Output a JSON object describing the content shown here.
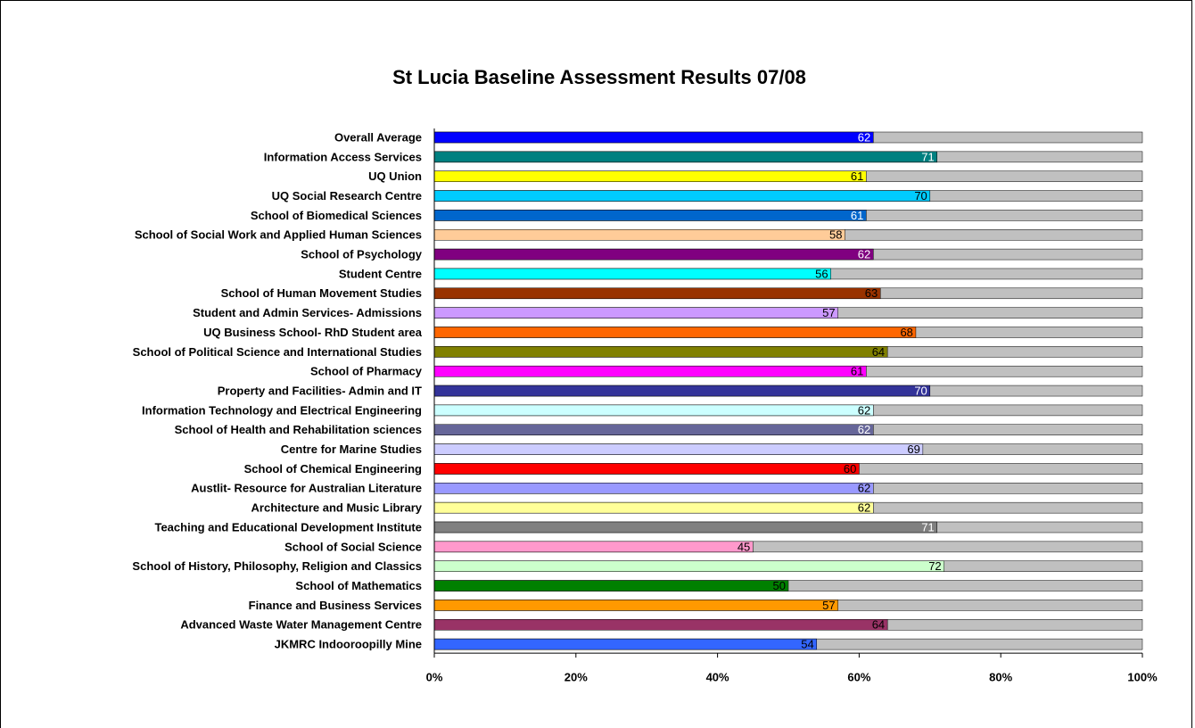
{
  "chart_data": {
    "type": "hbar",
    "title": "St Lucia Baseline Assessment Results 07/08",
    "categories": [
      "Overall Average",
      "Information Access Services",
      "UQ Union",
      "UQ Social Research Centre",
      "School of Biomedical Sciences",
      "School of Social Work and Applied Human Sciences",
      "School of Psychology",
      "Student Centre",
      "School of Human Movement Studies",
      "Student and Admin Services- Admissions",
      "UQ Business School- RhD Student area",
      "School of Political Science and International Studies",
      "School of Pharmacy",
      "Property and Facilities- Admin and IT",
      "Information Technology and Electrical Engineering",
      "School of Health and Rehabilitation sciences",
      "Centre for Marine Studies",
      "School of Chemical Engineering",
      "Austlit- Resource for Australian Literature",
      "Architecture and Music Library",
      "Teaching and Educational Development Institute",
      "School of Social Science",
      "School of History, Philosophy, Religion and Classics",
      "School of Mathematics",
      "Finance and Business Services",
      "Advanced Waste Water Management Centre",
      "JKMRC Indooroopilly Mine"
    ],
    "values": [
      62,
      71,
      61,
      70,
      61,
      58,
      62,
      56,
      63,
      57,
      68,
      64,
      61,
      70,
      62,
      62,
      69,
      60,
      62,
      62,
      71,
      45,
      72,
      50,
      57,
      64,
      54
    ],
    "colors": [
      "#0000ff",
      "#008080",
      "#ffff00",
      "#00ccff",
      "#0066cc",
      "#ffcc99",
      "#800080",
      "#00ffff",
      "#993300",
      "#cc99ff",
      "#ff6600",
      "#808000",
      "#ff00ff",
      "#333399",
      "#ccffff",
      "#666699",
      "#ccccff",
      "#ff0000",
      "#9999ff",
      "#ffff99",
      "#808080",
      "#ff99cc",
      "#ccffcc",
      "#008000",
      "#ff9900",
      "#993366",
      "#3366ff"
    ],
    "label_colors": [
      "#ffffff",
      "#ffffff",
      "#000000",
      "#000000",
      "#ffffff",
      "#000000",
      "#ffffff",
      "#000000",
      "#000000",
      "#000000",
      "#000000",
      "#000000",
      "#000000",
      "#ffffff",
      "#000000",
      "#ffffff",
      "#000000",
      "#000000",
      "#000000",
      "#000000",
      "#ffffff",
      "#000000",
      "#000000",
      "#000000",
      "#000000",
      "#000000",
      "#000000"
    ],
    "remainder_color": "#c0c0c0",
    "xlim": [
      0,
      100
    ],
    "xticks": [
      {
        "value": 0,
        "label": "0%"
      },
      {
        "value": 20,
        "label": "20%"
      },
      {
        "value": 40,
        "label": "40%"
      },
      {
        "value": 60,
        "label": "60%"
      },
      {
        "value": 80,
        "label": "80%"
      },
      {
        "value": 100,
        "label": "100%"
      }
    ]
  }
}
